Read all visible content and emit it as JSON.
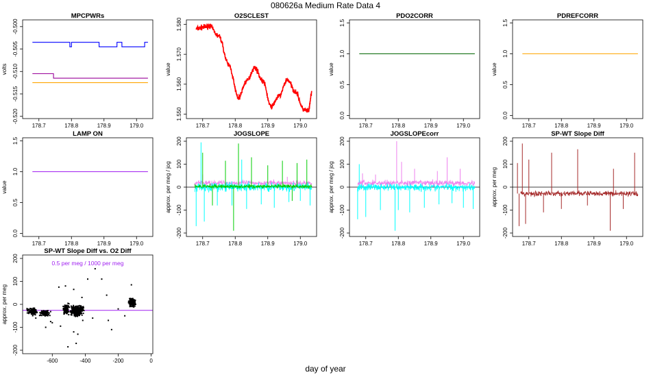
{
  "figure": {
    "title": "080626a   Medium Rate Data 4",
    "xlabel": "day of year"
  },
  "chart_data": [
    {
      "type": "line",
      "title": "MPCPWRs",
      "ylabel": "volts",
      "xlim": [
        178.65,
        179.05
      ],
      "ylim": [
        -0.5205,
        -0.4985
      ],
      "xticks": [
        "178.7",
        "178.8",
        "178.9",
        "179.0"
      ],
      "yticks": [
        "-0.520",
        "-0.515",
        "-0.510",
        "-0.505",
        "-0.500"
      ],
      "series": [
        {
          "color": "#0000ff",
          "x": [
            178.68,
            178.795,
            178.795,
            178.8,
            178.8,
            178.885,
            178.885,
            178.94,
            178.94,
            178.955,
            178.955,
            178.97,
            178.97,
            179.025,
            179.025,
            179.035
          ],
          "y": [
            -0.5035,
            -0.5035,
            -0.5045,
            -0.5045,
            -0.5035,
            -0.5035,
            -0.5045,
            -0.5045,
            -0.5035,
            -0.5035,
            -0.5045,
            -0.5045,
            -0.5045,
            -0.5045,
            -0.5035,
            -0.5035
          ]
        },
        {
          "color": "#990099",
          "x": [
            178.68,
            178.745,
            178.745,
            178.765,
            178.765,
            179.035
          ],
          "y": [
            -0.5105,
            -0.5105,
            -0.5115,
            -0.5115,
            -0.5115,
            -0.5115
          ]
        },
        {
          "color": "#ffa500",
          "x": [
            178.68,
            179.035
          ],
          "y": [
            -0.5125,
            -0.5125
          ]
        }
      ]
    },
    {
      "type": "line",
      "title": "O2SCLEST",
      "ylabel": "value",
      "xlim": [
        178.65,
        179.05
      ],
      "ylim": [
        1.5485,
        1.5815
      ],
      "xticks": [
        "178.7",
        "178.8",
        "178.9",
        "179.0"
      ],
      "yticks": [
        "1.550",
        "1.560",
        "1.570",
        "1.580"
      ],
      "series": [
        {
          "color": "#ff0000",
          "x": [
            178.68,
            178.7,
            178.72,
            178.75,
            178.78,
            178.81,
            178.835,
            178.86,
            178.885,
            178.91,
            178.935,
            178.96,
            178.985,
            179.01,
            179.025,
            179.035
          ],
          "y": [
            1.5785,
            1.579,
            1.5795,
            1.576,
            1.5665,
            1.5555,
            1.561,
            1.5655,
            1.561,
            1.5525,
            1.556,
            1.5615,
            1.5575,
            1.5515,
            1.551,
            1.557
          ]
        }
      ]
    },
    {
      "type": "line",
      "title": "PDO2CORR",
      "ylabel": "value",
      "xlim": [
        178.65,
        179.05
      ],
      "ylim": [
        -0.05,
        1.55
      ],
      "xticks": [
        "178.7",
        "178.8",
        "178.9",
        "179.0"
      ],
      "yticks": [
        "0.0",
        "0.5",
        "1.0",
        "1.5"
      ],
      "series": [
        {
          "color": "#006400",
          "x": [
            178.68,
            179.035
          ],
          "y": [
            1.0,
            1.0
          ]
        }
      ]
    },
    {
      "type": "line",
      "title": "PDREFCORR",
      "ylabel": "value",
      "xlim": [
        178.65,
        179.05
      ],
      "ylim": [
        -0.05,
        1.55
      ],
      "xticks": [
        "178.7",
        "178.8",
        "178.9",
        "179.0"
      ],
      "yticks": [
        "0.0",
        "0.5",
        "1.0",
        "1.5"
      ],
      "series": [
        {
          "color": "#ffa500",
          "x": [
            178.68,
            179.035
          ],
          "y": [
            1.0,
            1.0
          ]
        }
      ]
    },
    {
      "type": "line",
      "title": "LAMP ON",
      "ylabel": "value",
      "xlim": [
        178.65,
        179.05
      ],
      "ylim": [
        -0.05,
        1.55
      ],
      "xticks": [
        "178.7",
        "178.8",
        "178.9",
        "179.0"
      ],
      "yticks": [
        "0.0",
        "0.5",
        "1.0",
        "1.5"
      ],
      "series": [
        {
          "color": "#a020f0",
          "x": [
            178.68,
            179.035
          ],
          "y": [
            1.0,
            1.0
          ]
        }
      ]
    },
    {
      "type": "line",
      "title": "JOGSLOPE",
      "ylabel": "approx. per meg / jog",
      "xlim": [
        178.65,
        179.05
      ],
      "ylim": [
        -215,
        215
      ],
      "xticks": [
        "178.7",
        "178.8",
        "178.9",
        "179.0"
      ],
      "yticks": [
        "-200",
        "-100",
        "0",
        "100",
        "200"
      ],
      "hline": 0,
      "series": [
        {
          "color": "#ee82ee",
          "base": 18,
          "noise": 8,
          "spikes": [
            [
              178.7,
              55
            ],
            [
              178.85,
              60
            ],
            [
              178.96,
              45
            ]
          ]
        },
        {
          "color": "#00ffff",
          "base": 0,
          "noise": 14,
          "spikes": [
            [
              178.68,
              -170
            ],
            [
              178.695,
              195
            ],
            [
              178.705,
              -150
            ],
            [
              178.745,
              -80
            ],
            [
              178.79,
              -80
            ],
            [
              178.82,
              120
            ],
            [
              178.835,
              -95
            ],
            [
              178.88,
              -75
            ],
            [
              178.92,
              -90
            ],
            [
              178.965,
              -65
            ],
            [
              179.0,
              -60
            ],
            [
              179.03,
              -80
            ]
          ]
        },
        {
          "color": "#00cc00",
          "base": 3,
          "noise": 6,
          "spikes": [
            [
              178.7,
              150
            ],
            [
              178.73,
              -80
            ],
            [
              178.77,
              115
            ],
            [
              178.795,
              -190
            ],
            [
              178.81,
              190
            ],
            [
              178.85,
              130
            ],
            [
              178.9,
              95
            ],
            [
              178.945,
              115
            ],
            [
              178.99,
              105
            ],
            [
              179.02,
              120
            ],
            [
              178.975,
              -60
            ]
          ]
        }
      ]
    },
    {
      "type": "line",
      "title": "JOGSLOPEcorr",
      "ylabel": "approx. per meg / jog",
      "xlim": [
        178.65,
        179.05
      ],
      "ylim": [
        -215,
        215
      ],
      "xticks": [
        "178.7",
        "178.8",
        "178.9",
        "179.0"
      ],
      "yticks": [
        "-200",
        "-100",
        "0",
        "100",
        "200"
      ],
      "hline": 0,
      "series": [
        {
          "color": "#00ffff",
          "base": 0,
          "noise": 12,
          "spikes": [
            [
              178.675,
              -140
            ],
            [
              178.68,
              100
            ],
            [
              178.7,
              -130
            ],
            [
              178.745,
              -100
            ],
            [
              178.79,
              -190
            ],
            [
              178.8,
              -100
            ],
            [
              178.835,
              -110
            ],
            [
              178.88,
              -90
            ],
            [
              178.925,
              -75
            ],
            [
              178.965,
              -70
            ],
            [
              179.0,
              -90
            ],
            [
              179.03,
              -95
            ]
          ]
        },
        {
          "color": "#ee82ee",
          "base": 18,
          "noise": 9,
          "spikes": [
            [
              178.69,
              60
            ],
            [
              178.73,
              55
            ],
            [
              178.795,
              200
            ],
            [
              178.81,
              110
            ],
            [
              178.85,
              80
            ],
            [
              178.92,
              70
            ],
            [
              178.95,
              130
            ],
            [
              178.99,
              80
            ]
          ]
        }
      ]
    },
    {
      "type": "line",
      "title": "SP-WT Slope Diff",
      "ylabel": "approx. per meg",
      "xlim": [
        178.65,
        179.05
      ],
      "ylim": [
        -215,
        215
      ],
      "xticks": [
        "178.7",
        "178.8",
        "178.9",
        "179.0"
      ],
      "yticks": [
        "-200",
        "-100",
        "0",
        "100",
        "200"
      ],
      "hline": 0,
      "series": [
        {
          "color": "#a52a2a",
          "base": -28,
          "noise": 8,
          "spikes": [
            [
              178.665,
              105
            ],
            [
              178.67,
              -170
            ],
            [
              178.68,
              190
            ],
            [
              178.69,
              -160
            ],
            [
              178.7,
              120
            ],
            [
              178.745,
              -110
            ],
            [
              178.77,
              150
            ],
            [
              178.8,
              -95
            ],
            [
              178.85,
              165
            ],
            [
              178.88,
              -80
            ],
            [
              178.95,
              -190
            ],
            [
              178.96,
              80
            ],
            [
              178.99,
              -95
            ],
            [
              179.025,
              150
            ]
          ]
        }
      ]
    },
    {
      "type": "scatter",
      "title": "SP-WT Slope Diff vs. O2 Diff",
      "annotation": "0.5 per meg / 1000 per meg",
      "ylabel": "approx. per meg",
      "xlim": [
        -780,
        10
      ],
      "ylim": [
        -215,
        215
      ],
      "xticks": [
        "-600",
        "-400",
        "-200",
        "0"
      ],
      "yticks": [
        "-200",
        "-100",
        "0",
        "100",
        "200"
      ],
      "fit_line": {
        "color": "#a020f0",
        "x": [
          -780,
          10
        ],
        "y": [
          -26,
          -26
        ]
      },
      "series": [
        {
          "color": "#000000",
          "clusters": [
            [
              -720,
              -30,
              18,
              10,
              120
            ],
            [
              -645,
              -38,
              20,
              8,
              90
            ],
            [
              -515,
              -20,
              12,
              14,
              110
            ],
            [
              -450,
              -28,
              24,
              15,
              320
            ],
            [
              -115,
              8,
              12,
              12,
              160
            ]
          ],
          "points": [
            [
              -560,
              75
            ],
            [
              -520,
              80
            ],
            [
              -470,
              65
            ],
            [
              -420,
              30
            ],
            [
              -415,
              -70
            ],
            [
              -385,
              110
            ],
            [
              -340,
              155
            ],
            [
              -300,
              110
            ],
            [
              -240,
              -110
            ],
            [
              -160,
              -50
            ],
            [
              -640,
              -100
            ],
            [
              -600,
              -80
            ],
            [
              -700,
              -60
            ],
            [
              -355,
              -60
            ],
            [
              -470,
              -120
            ],
            [
              -455,
              -170
            ],
            [
              -445,
              -130
            ],
            [
              -505,
              -185
            ],
            [
              -260,
              -70
            ],
            [
              -200,
              -20
            ],
            [
              -120,
              85
            ],
            [
              -270,
              40
            ],
            [
              -550,
              -95
            ],
            [
              -610,
              -75
            ]
          ]
        }
      ]
    }
  ]
}
